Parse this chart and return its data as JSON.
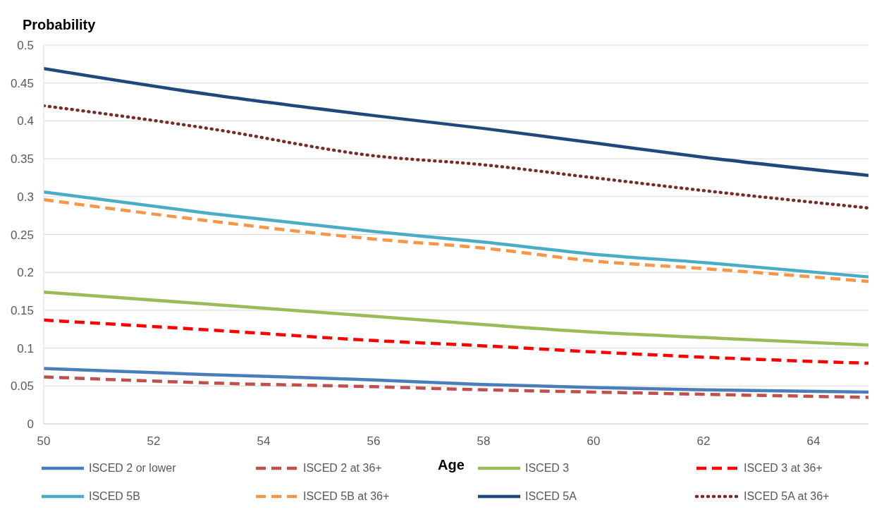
{
  "chart_data": {
    "type": "line",
    "ylabel": "Probability",
    "xlabel": "Age",
    "x": [
      50,
      53,
      56,
      58,
      60,
      62,
      65
    ],
    "xlim": [
      50,
      65
    ],
    "xticks": [
      50,
      52,
      54,
      56,
      58,
      60,
      62,
      64
    ],
    "ylim": [
      0,
      0.5
    ],
    "yticks": [
      0,
      0.05,
      0.1,
      0.15,
      0.2,
      0.25,
      0.3,
      0.35,
      0.4,
      0.45,
      0.5
    ],
    "grid": "y",
    "legend": "bottom",
    "marker": "none",
    "series": [
      {
        "name": "ISCED 2 or lower",
        "color": "#4a7ebb",
        "line_style": "solid",
        "values": [
          0.073,
          0.065,
          0.058,
          0.052,
          0.048,
          0.045,
          0.042
        ]
      },
      {
        "name": "ISCED 2 at 36+",
        "color": "#c0504d",
        "line_style": "dashed",
        "values": [
          0.062,
          0.054,
          0.049,
          0.045,
          0.042,
          0.039,
          0.035
        ]
      },
      {
        "name": "ISCED 3",
        "color": "#9bbb59",
        "line_style": "solid",
        "values": [
          0.174,
          0.158,
          0.142,
          0.131,
          0.121,
          0.114,
          0.104
        ]
      },
      {
        "name": "ISCED 3 at 36+",
        "color": "#ff0000",
        "line_style": "dashed",
        "values": [
          0.137,
          0.124,
          0.11,
          0.103,
          0.095,
          0.088,
          0.08
        ]
      },
      {
        "name": "ISCED 5B",
        "color": "#4bacc6",
        "line_style": "solid",
        "values": [
          0.306,
          0.278,
          0.254,
          0.24,
          0.224,
          0.213,
          0.194
        ]
      },
      {
        "name": "ISCED 5B at 36+",
        "color": "#f79646",
        "line_style": "dashed",
        "values": [
          0.296,
          0.268,
          0.244,
          0.232,
          0.215,
          0.205,
          0.188
        ]
      },
      {
        "name": "ISCED 5A",
        "color": "#1f497d",
        "line_style": "solid",
        "values": [
          0.469,
          0.435,
          0.407,
          0.39,
          0.371,
          0.352,
          0.328
        ]
      },
      {
        "name": "ISCED 5A at 36+",
        "color": "#772c2a",
        "line_style": "dotted",
        "values": [
          0.42,
          0.39,
          0.354,
          0.342,
          0.325,
          0.308,
          0.285
        ]
      }
    ]
  }
}
